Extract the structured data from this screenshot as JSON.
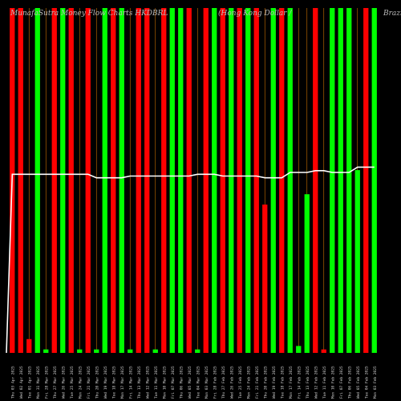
{
  "header": {
    "left": "MunafaSutra Money Flow Charts HKDBRL",
    "center": "(Hong Kong Dollar /",
    "right": "Brazil"
  },
  "colors": {
    "up": "#00ff00",
    "down": "#ff0000",
    "line": "#ffffff",
    "gridline": "#ff8c00",
    "background": "#000000",
    "label": "#cccccc"
  },
  "chart_data": {
    "type": "bar",
    "ylim": [
      0,
      100
    ],
    "grid": "vertical",
    "categories": [
      "Thu 03 Apr 2025",
      "Wed 02 Apr 2025",
      "Tue 01 Apr 2025",
      "Mon 31 Mar 2025",
      "Fri 28 Mar 2025",
      "Thu 27 Mar 2025",
      "Wed 26 Mar 2025",
      "Tue 25 Mar 2025",
      "Mon 24 Mar 2025",
      "Fri 21 Mar 2025",
      "Thu 20 Mar 2025",
      "Wed 19 Mar 2025",
      "Tue 18 Mar 2025",
      "Mon 17 Mar 2025",
      "Fri 14 Mar 2025",
      "Thu 13 Mar 2025",
      "Wed 12 Mar 2025",
      "Tue 11 Mar 2025",
      "Mon 10 Mar 2025",
      "Fri 07 Mar 2025",
      "Thu 06 Mar 2025",
      "Wed 05 Mar 2025",
      "Tue 04 Mar 2025",
      "Mon 03 Mar 2025",
      "Fri 28 Feb 2025",
      "Thu 27 Feb 2025",
      "Wed 26 Feb 2025",
      "Tue 25 Feb 2025",
      "Mon 24 Feb 2025",
      "Fri 21 Feb 2025",
      "Thu 20 Feb 2025",
      "Wed 19 Feb 2025",
      "Tue 18 Feb 2025",
      "Mon 17 Feb 2025",
      "Fri 14 Feb 2025",
      "Thu 13 Feb 2025",
      "Wed 12 Feb 2025",
      "Tue 11 Feb 2025",
      "Mon 10 Feb 2025",
      "Fri 07 Feb 2025",
      "Thu 06 Feb 2025",
      "Wed 05 Feb 2025",
      "Tue 04 Feb 2025",
      "Mon 03 Feb 2025"
    ],
    "values": [
      100,
      100,
      4,
      100,
      1,
      100,
      100,
      100,
      1,
      100,
      1,
      100,
      100,
      100,
      1,
      100,
      100,
      1,
      100,
      100,
      100,
      100,
      1,
      100,
      100,
      100,
      100,
      100,
      100,
      100,
      43,
      100,
      100,
      100,
      2,
      46,
      100,
      1,
      100,
      100,
      100,
      53,
      100,
      100
    ],
    "directions": [
      "down",
      "down",
      "down",
      "up",
      "up",
      "down",
      "up",
      "down",
      "up",
      "down",
      "up",
      "up",
      "down",
      "up",
      "up",
      "down",
      "down",
      "up",
      "down",
      "up",
      "up",
      "down",
      "up",
      "down",
      "up",
      "down",
      "up",
      "down",
      "up",
      "down",
      "down",
      "up",
      "down",
      "up",
      "up",
      "up",
      "down",
      "down",
      "up",
      "up",
      "up",
      "up",
      "down",
      "up"
    ],
    "line": [
      100,
      100,
      100,
      100,
      100,
      100,
      100,
      100,
      100,
      100,
      98,
      98,
      98,
      98,
      99,
      99,
      99,
      99,
      99,
      99,
      99,
      99,
      100,
      100,
      100,
      99,
      99,
      99,
      99,
      99,
      98,
      98,
      98,
      101,
      101,
      101,
      102,
      102,
      101,
      101,
      101,
      104,
      104,
      104
    ]
  }
}
